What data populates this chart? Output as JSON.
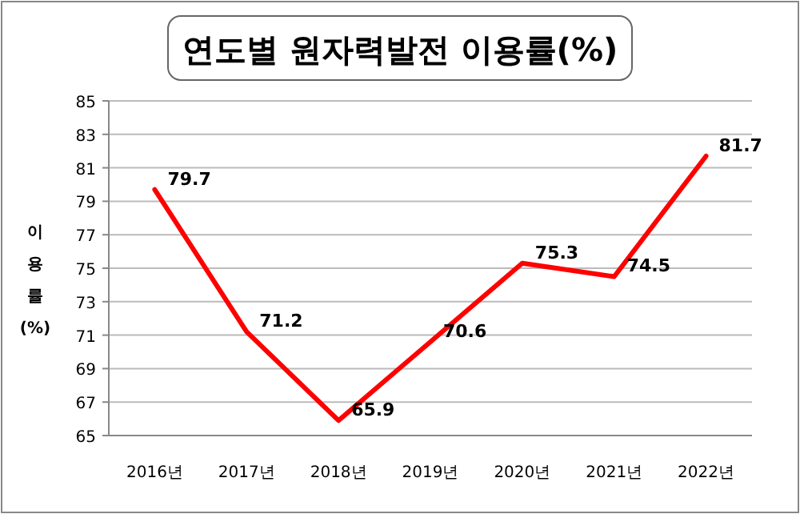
{
  "chart_data": {
    "type": "line",
    "title": "연도별 원자력발전 이용률(%)",
    "ylabel": "이용률(%)",
    "categories": [
      "2016년",
      "2017년",
      "2018년",
      "2019년",
      "2020년",
      "2021년",
      "2022년"
    ],
    "series": [
      {
        "color": "#ff0000",
        "values": [
          79.7,
          71.2,
          65.9,
          70.6,
          75.3,
          74.5,
          81.7
        ]
      }
    ],
    "ylim": [
      65,
      85
    ],
    "yticks": [
      65,
      67,
      69,
      71,
      73,
      75,
      77,
      79,
      81,
      83,
      85
    ],
    "grid": "y",
    "data_labels": true
  }
}
